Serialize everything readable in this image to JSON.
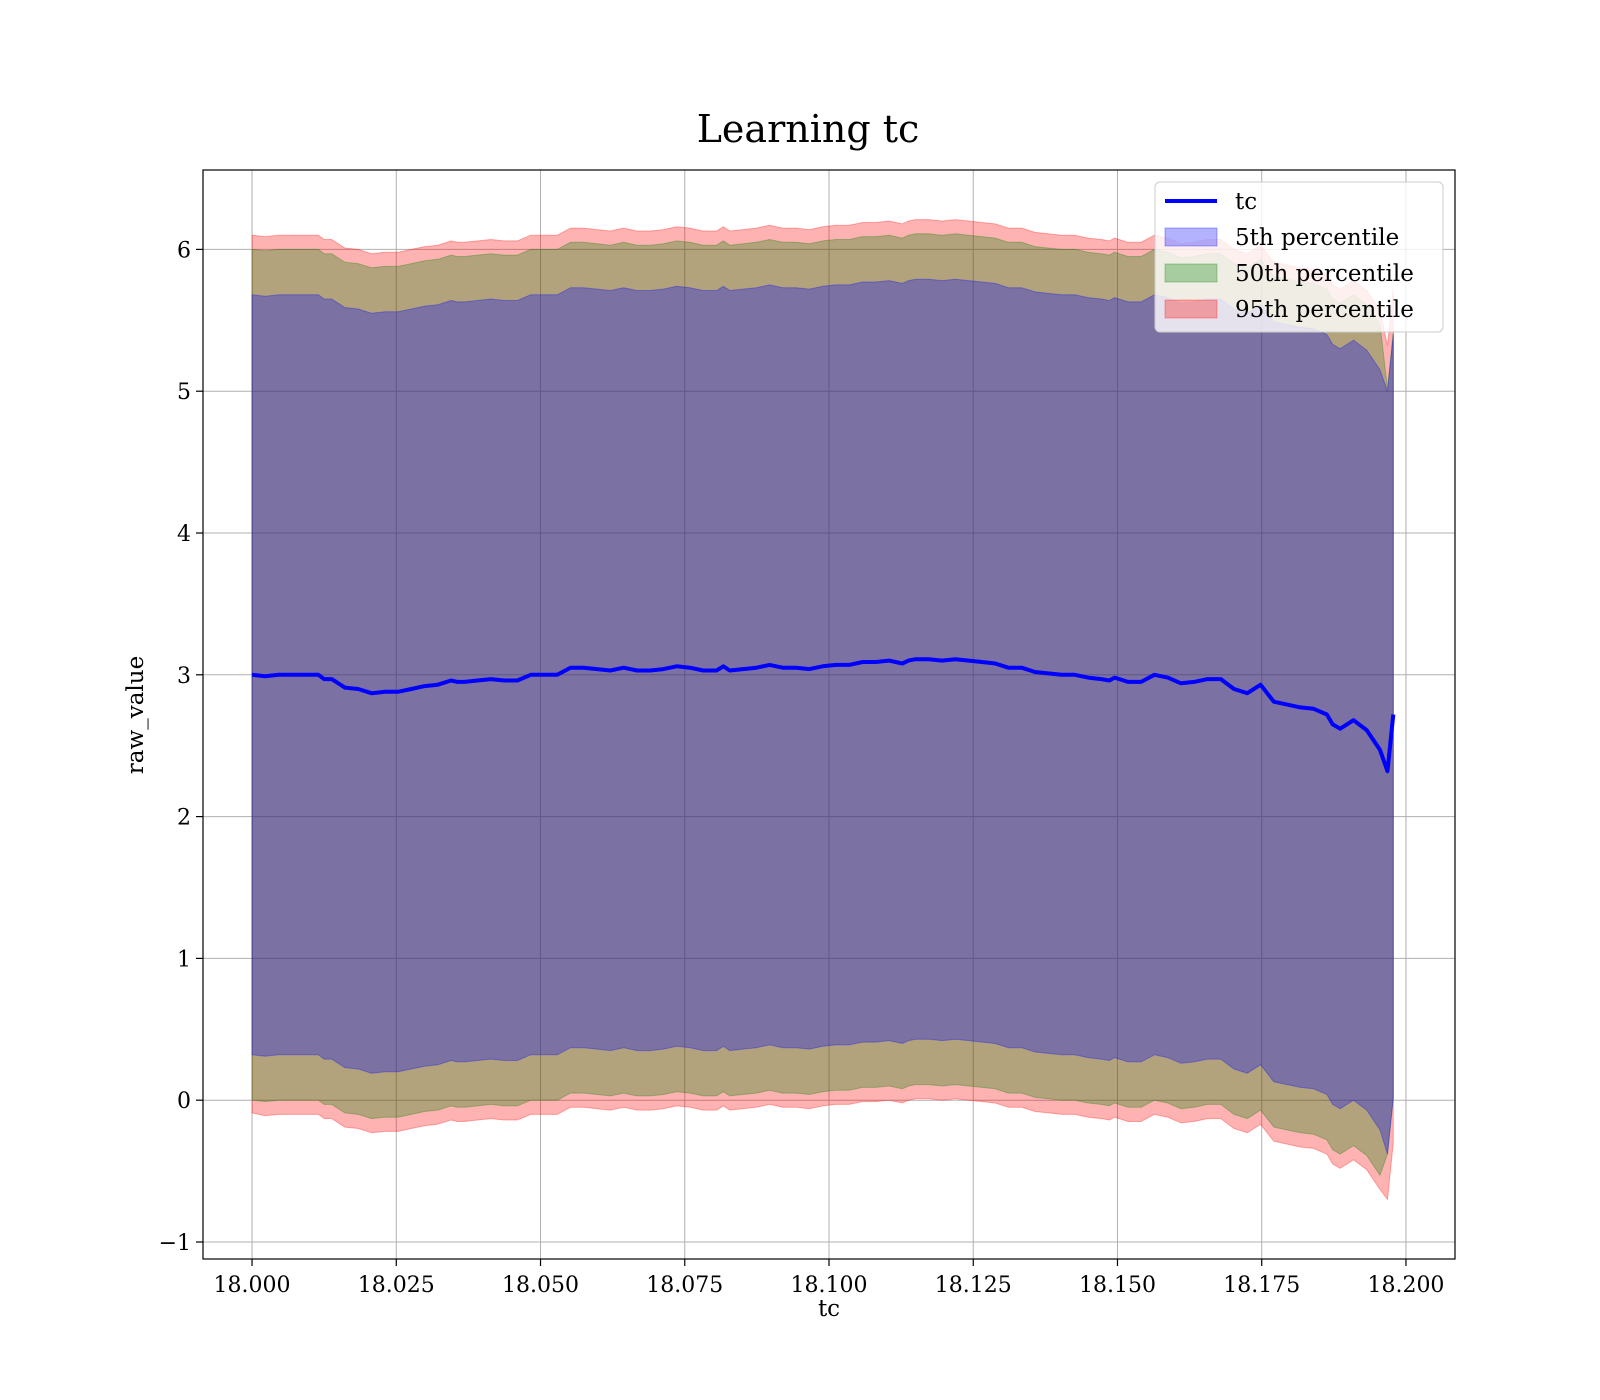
{
  "chart_data": {
    "type": "line",
    "title": "Learning tc",
    "xlabel": "tc",
    "ylabel": "raw_value",
    "xlim": [
      17.9915,
      18.2085
    ],
    "ylim": [
      -1.12,
      6.56
    ],
    "grid": true,
    "legend_position": "top-right",
    "xticks": [
      18.0,
      18.025,
      18.05,
      18.075,
      18.1,
      18.125,
      18.15,
      18.175,
      18.2
    ],
    "xtick_labels": [
      "18.000",
      "18.025",
      "18.050",
      "18.075",
      "18.100",
      "18.125",
      "18.150",
      "18.175",
      "18.200"
    ],
    "yticks": [
      -1,
      0,
      1,
      2,
      3,
      4,
      5,
      6
    ],
    "ytick_labels": [
      "−1",
      "0",
      "1",
      "2",
      "3",
      "4",
      "5",
      "6"
    ],
    "x": [
      18.0,
      18.0023,
      18.0046,
      18.0069,
      18.0092,
      18.0115,
      18.0125,
      18.0138,
      18.0161,
      18.0184,
      18.0207,
      18.023,
      18.0253,
      18.0276,
      18.0299,
      18.0322,
      18.0345,
      18.0356,
      18.0368,
      18.0391,
      18.0414,
      18.0437,
      18.046,
      18.0483,
      18.0506,
      18.0529,
      18.0552,
      18.0575,
      18.0598,
      18.0621,
      18.0644,
      18.0667,
      18.069,
      18.0713,
      18.0736,
      18.0759,
      18.0782,
      18.0805,
      18.0817,
      18.0828,
      18.0851,
      18.0874,
      18.0897,
      18.092,
      18.0943,
      18.0966,
      18.0989,
      18.1012,
      18.1035,
      18.1058,
      18.1081,
      18.1104,
      18.1127,
      18.1138,
      18.115,
      18.1173,
      18.1196,
      18.1219,
      18.1242,
      18.1265,
      18.1288,
      18.1311,
      18.1334,
      18.1357,
      18.138,
      18.1403,
      18.1426,
      18.1449,
      18.1472,
      18.1486,
      18.1495,
      18.1518,
      18.1541,
      18.1564,
      18.1587,
      18.161,
      18.1633,
      18.1656,
      18.1679,
      18.1702,
      18.1725,
      18.1748,
      18.1771,
      18.1794,
      18.1817,
      18.184,
      18.1863,
      18.1873,
      18.1886,
      18.1909,
      18.1932,
      18.1955,
      18.1968,
      18.1978
    ],
    "series": [
      {
        "name": "tc",
        "color": "#0000ff",
        "values": [
          3.0,
          2.99,
          3.0,
          3.0,
          3.0,
          3.0,
          2.97,
          2.97,
          2.91,
          2.9,
          2.87,
          2.88,
          2.88,
          2.9,
          2.92,
          2.93,
          2.96,
          2.95,
          2.95,
          2.96,
          2.97,
          2.96,
          2.96,
          3.0,
          3.0,
          3.0,
          3.05,
          3.05,
          3.04,
          3.03,
          3.05,
          3.03,
          3.03,
          3.04,
          3.06,
          3.05,
          3.03,
          3.03,
          3.06,
          3.03,
          3.04,
          3.05,
          3.07,
          3.05,
          3.05,
          3.04,
          3.06,
          3.07,
          3.07,
          3.09,
          3.09,
          3.1,
          3.08,
          3.1,
          3.11,
          3.11,
          3.1,
          3.11,
          3.1,
          3.09,
          3.08,
          3.05,
          3.05,
          3.02,
          3.01,
          3.0,
          3.0,
          2.98,
          2.97,
          2.96,
          2.98,
          2.95,
          2.95,
          3.0,
          2.98,
          2.94,
          2.95,
          2.97,
          2.97,
          2.9,
          2.87,
          2.93,
          2.81,
          2.79,
          2.77,
          2.76,
          2.72,
          2.65,
          2.62,
          2.68,
          2.61,
          2.47,
          2.32,
          2.72
        ]
      }
    ],
    "bands": [
      {
        "name": "95th percentile",
        "color": "#ff0000",
        "alpha": 0.3,
        "lower_offset": [
          -3.09,
          -3.1,
          -3.1,
          -3.1,
          -3.1,
          -3.1,
          -3.1,
          -3.1,
          -3.1,
          -3.1,
          -3.1,
          -3.1,
          -3.1,
          -3.1,
          -3.1,
          -3.1,
          -3.1,
          -3.1,
          -3.1,
          -3.1,
          -3.1,
          -3.1,
          -3.1,
          -3.1,
          -3.1,
          -3.1,
          -3.1,
          -3.1,
          -3.1,
          -3.1,
          -3.1,
          -3.1,
          -3.1,
          -3.1,
          -3.1,
          -3.1,
          -3.1,
          -3.1,
          -3.1,
          -3.1,
          -3.1,
          -3.1,
          -3.1,
          -3.1,
          -3.1,
          -3.1,
          -3.1,
          -3.1,
          -3.1,
          -3.1,
          -3.1,
          -3.1,
          -3.1,
          -3.1,
          -3.1,
          -3.1,
          -3.1,
          -3.1,
          -3.1,
          -3.1,
          -3.1,
          -3.1,
          -3.1,
          -3.1,
          -3.1,
          -3.1,
          -3.1,
          -3.1,
          -3.1,
          -3.1,
          -3.1,
          -3.1,
          -3.1,
          -3.1,
          -3.1,
          -3.1,
          -3.1,
          -3.1,
          -3.1,
          -3.1,
          -3.1,
          -3.1,
          -3.1,
          -3.1,
          -3.1,
          -3.1,
          -3.1,
          -3.1,
          -3.1,
          -3.1,
          -3.1,
          -3.1,
          -3.02,
          -3.02
        ],
        "upper_offset": [
          3.1,
          3.1,
          3.1,
          3.1,
          3.1,
          3.1,
          3.1,
          3.1,
          3.1,
          3.1,
          3.1,
          3.1,
          3.1,
          3.1,
          3.1,
          3.1,
          3.1,
          3.1,
          3.1,
          3.1,
          3.1,
          3.1,
          3.1,
          3.1,
          3.1,
          3.1,
          3.1,
          3.1,
          3.1,
          3.1,
          3.1,
          3.1,
          3.1,
          3.1,
          3.1,
          3.1,
          3.1,
          3.1,
          3.1,
          3.1,
          3.1,
          3.1,
          3.1,
          3.1,
          3.1,
          3.1,
          3.1,
          3.1,
          3.1,
          3.1,
          3.1,
          3.1,
          3.1,
          3.1,
          3.1,
          3.1,
          3.1,
          3.1,
          3.1,
          3.1,
          3.1,
          3.1,
          3.1,
          3.1,
          3.1,
          3.1,
          3.1,
          3.1,
          3.1,
          3.1,
          3.1,
          3.1,
          3.1,
          3.1,
          3.1,
          3.1,
          3.1,
          3.1,
          3.1,
          3.1,
          3.1,
          3.1,
          3.1,
          3.1,
          3.1,
          3.1,
          3.1,
          3.1,
          3.1,
          3.1,
          3.1,
          3.1,
          3.0,
          3.0
        ]
      },
      {
        "name": "50th percentile",
        "color": "#008000",
        "alpha": 0.3,
        "lower_offset": [
          -3.0,
          -3.0,
          -3.0,
          -3.0,
          -3.0,
          -3.0,
          -3.0,
          -3.0,
          -3.0,
          -3.0,
          -3.0,
          -3.0,
          -3.0,
          -3.0,
          -3.0,
          -3.0,
          -3.0,
          -3.0,
          -3.0,
          -3.0,
          -3.0,
          -3.0,
          -3.0,
          -3.0,
          -3.0,
          -3.0,
          -3.0,
          -3.0,
          -3.0,
          -3.0,
          -3.0,
          -3.0,
          -3.0,
          -3.0,
          -3.0,
          -3.0,
          -3.0,
          -3.0,
          -3.0,
          -3.0,
          -3.0,
          -3.0,
          -3.0,
          -3.0,
          -3.0,
          -3.0,
          -3.0,
          -3.0,
          -3.0,
          -3.0,
          -3.0,
          -3.0,
          -3.0,
          -3.0,
          -3.0,
          -3.0,
          -3.0,
          -3.0,
          -3.0,
          -3.0,
          -3.0,
          -3.0,
          -3.0,
          -3.0,
          -3.0,
          -3.0,
          -3.0,
          -3.0,
          -3.0,
          -3.0,
          -3.0,
          -3.0,
          -3.0,
          -3.0,
          -3.0,
          -3.0,
          -3.0,
          -3.0,
          -3.0,
          -3.0,
          -3.0,
          -3.0,
          -3.0,
          -3.0,
          -3.0,
          -3.0,
          -3.0,
          -3.0,
          -3.0,
          -3.0,
          -3.0,
          -3.0,
          -2.7,
          -2.7
        ],
        "upper_offset": [
          3.0,
          3.0,
          3.0,
          3.0,
          3.0,
          3.0,
          3.0,
          3.0,
          3.0,
          3.0,
          3.0,
          3.0,
          3.0,
          3.0,
          3.0,
          3.0,
          3.0,
          3.0,
          3.0,
          3.0,
          3.0,
          3.0,
          3.0,
          3.0,
          3.0,
          3.0,
          3.0,
          3.0,
          3.0,
          3.0,
          3.0,
          3.0,
          3.0,
          3.0,
          3.0,
          3.0,
          3.0,
          3.0,
          3.0,
          3.0,
          3.0,
          3.0,
          3.0,
          3.0,
          3.0,
          3.0,
          3.0,
          3.0,
          3.0,
          3.0,
          3.0,
          3.0,
          3.0,
          3.0,
          3.0,
          3.0,
          3.0,
          3.0,
          3.0,
          3.0,
          3.0,
          3.0,
          3.0,
          3.0,
          3.0,
          3.0,
          3.0,
          3.0,
          3.0,
          3.0,
          3.0,
          3.0,
          3.0,
          3.0,
          3.0,
          3.0,
          3.0,
          3.0,
          3.0,
          3.0,
          3.0,
          3.0,
          3.0,
          3.0,
          3.0,
          3.0,
          3.0,
          3.0,
          3.0,
          3.0,
          3.0,
          3.0,
          2.7,
          2.7
        ]
      },
      {
        "name": "5th percentile",
        "color": "#0000ff",
        "alpha": 0.3,
        "lower_offset": [
          -2.68,
          -2.68,
          -2.68,
          -2.68,
          -2.68,
          -2.68,
          -2.68,
          -2.68,
          -2.68,
          -2.68,
          -2.68,
          -2.68,
          -2.68,
          -2.68,
          -2.68,
          -2.68,
          -2.68,
          -2.68,
          -2.68,
          -2.68,
          -2.68,
          -2.68,
          -2.68,
          -2.68,
          -2.68,
          -2.68,
          -2.68,
          -2.68,
          -2.68,
          -2.68,
          -2.68,
          -2.68,
          -2.68,
          -2.68,
          -2.68,
          -2.68,
          -2.68,
          -2.68,
          -2.68,
          -2.68,
          -2.68,
          -2.68,
          -2.68,
          -2.68,
          -2.68,
          -2.68,
          -2.68,
          -2.68,
          -2.68,
          -2.68,
          -2.68,
          -2.68,
          -2.68,
          -2.68,
          -2.68,
          -2.68,
          -2.68,
          -2.68,
          -2.68,
          -2.68,
          -2.68,
          -2.68,
          -2.68,
          -2.68,
          -2.68,
          -2.68,
          -2.68,
          -2.68,
          -2.68,
          -2.68,
          -2.68,
          -2.68,
          -2.68,
          -2.68,
          -2.68,
          -2.68,
          -2.68,
          -2.68,
          -2.68,
          -2.68,
          -2.68,
          -2.68,
          -2.68,
          -2.68,
          -2.68,
          -2.68,
          -2.68,
          -2.68,
          -2.68,
          -2.68,
          -2.68,
          -2.68,
          -2.7,
          -2.7
        ],
        "upper_offset": [
          2.68,
          2.68,
          2.68,
          2.68,
          2.68,
          2.68,
          2.68,
          2.68,
          2.68,
          2.68,
          2.68,
          2.68,
          2.68,
          2.68,
          2.68,
          2.68,
          2.68,
          2.68,
          2.68,
          2.68,
          2.68,
          2.68,
          2.68,
          2.68,
          2.68,
          2.68,
          2.68,
          2.68,
          2.68,
          2.68,
          2.68,
          2.68,
          2.68,
          2.68,
          2.68,
          2.68,
          2.68,
          2.68,
          2.68,
          2.68,
          2.68,
          2.68,
          2.68,
          2.68,
          2.68,
          2.68,
          2.68,
          2.68,
          2.68,
          2.68,
          2.68,
          2.68,
          2.68,
          2.68,
          2.68,
          2.68,
          2.68,
          2.68,
          2.68,
          2.68,
          2.68,
          2.68,
          2.68,
          2.68,
          2.68,
          2.68,
          2.68,
          2.68,
          2.68,
          2.68,
          2.68,
          2.68,
          2.68,
          2.68,
          2.68,
          2.68,
          2.68,
          2.68,
          2.68,
          2.68,
          2.68,
          2.68,
          2.68,
          2.68,
          2.68,
          2.68,
          2.68,
          2.68,
          2.68,
          2.68,
          2.68,
          2.68,
          2.68,
          2.68
        ]
      }
    ],
    "legend": [
      {
        "label": "tc",
        "kind": "line",
        "color": "#0000ff"
      },
      {
        "label": "5th percentile",
        "kind": "patch",
        "color": "#0000ff"
      },
      {
        "label": "50th percentile",
        "kind": "patch",
        "color": "#008000"
      },
      {
        "label": "95th percentile",
        "kind": "patch",
        "color": "#ff0000"
      }
    ]
  }
}
